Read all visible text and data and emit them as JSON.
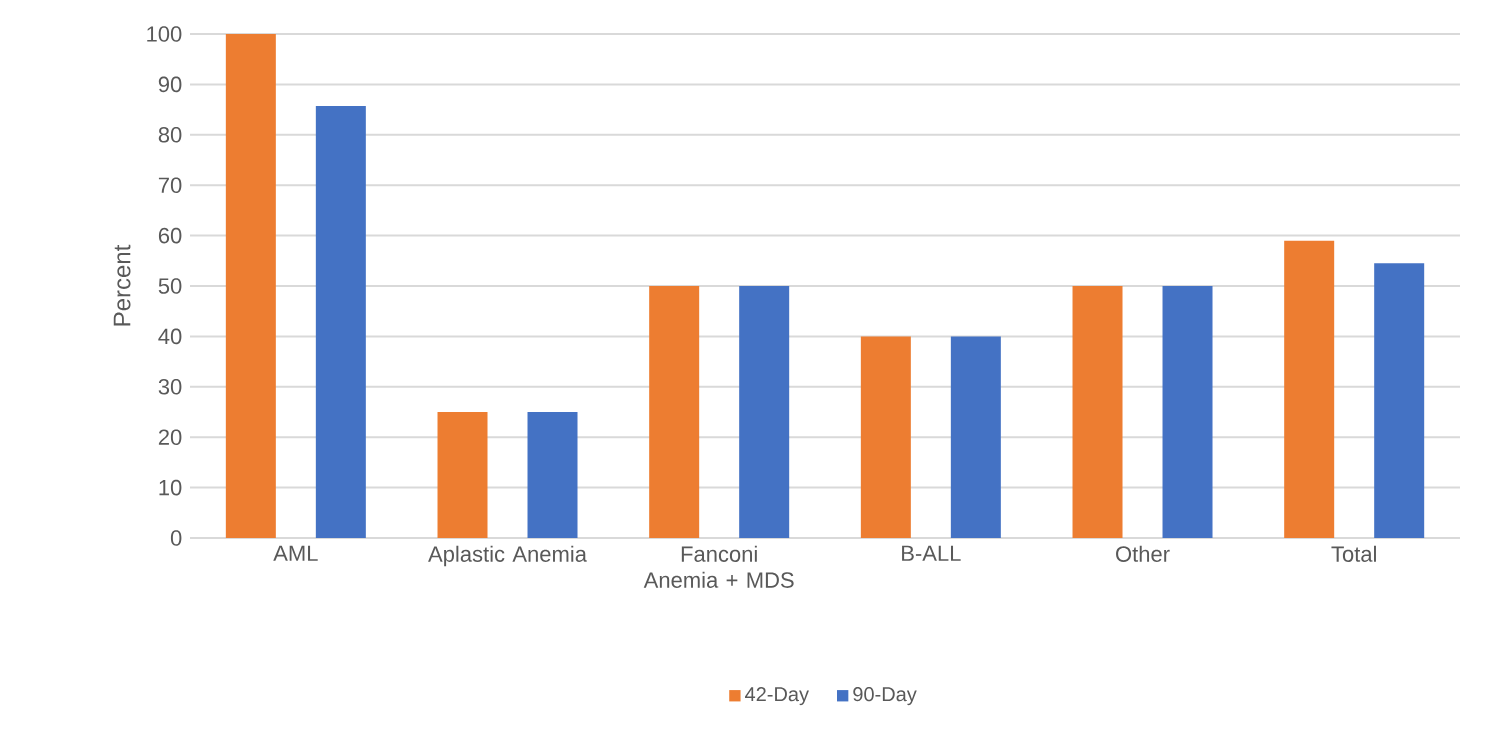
{
  "chart_data": {
    "type": "bar",
    "ylabel": "Percent",
    "categories": [
      "AML",
      "Aplastic Anemia",
      "Fanconi Anemia + MDS",
      "B-ALL",
      "Other",
      "Total"
    ],
    "series": [
      {
        "name": "42-Day",
        "color": "#ed7d31",
        "values": [
          100,
          25,
          50,
          40,
          50,
          59
        ]
      },
      {
        "name": "90-Day",
        "color": "#4472c4",
        "values": [
          85.7,
          25,
          50,
          40,
          50,
          54.5
        ]
      }
    ],
    "ylim": [
      0,
      100
    ],
    "yticks": [
      0,
      10,
      20,
      30,
      40,
      50,
      60,
      70,
      80,
      90,
      100
    ],
    "grid": "y",
    "legend": "bottom"
  }
}
